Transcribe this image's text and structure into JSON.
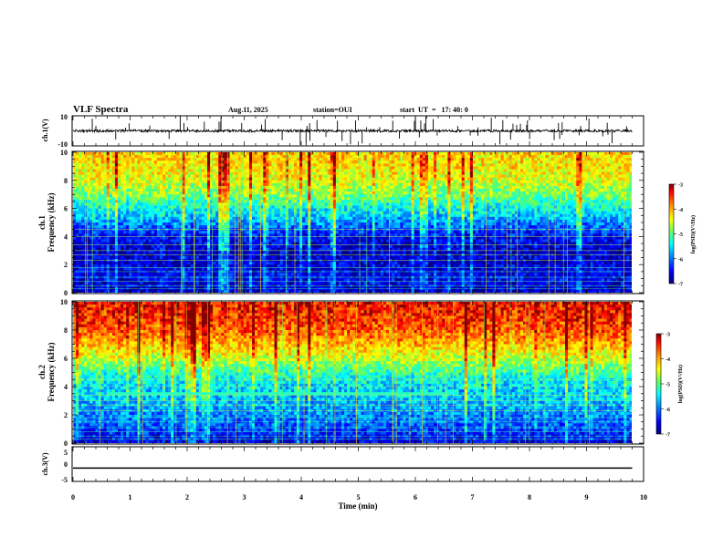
{
  "header": {
    "title": "VLF Spectra",
    "date": "Aug.11, 2025",
    "station": "station=OUI",
    "start": "start  UT  =   17: 40: 0"
  },
  "chart_data": [
    {
      "type": "line",
      "panel": "waveform-ch1",
      "ylabel": "ch.1(V)",
      "ylim": [
        -10,
        10
      ],
      "yticks": [
        "10",
        "-10"
      ],
      "xlim": [
        0,
        10
      ],
      "trace_level": 0,
      "trace_end_min": 9.8
    },
    {
      "type": "heatmap",
      "panel": "spectrogram-ch1",
      "ylabel_line1": "ch.1",
      "ylabel_line2": "Frequency (kHz)",
      "ylim": [
        0,
        10
      ],
      "yticks": [
        "0",
        "2",
        "4",
        "6",
        "8",
        "10"
      ],
      "xlim": [
        0,
        10
      ],
      "data_end_min": 9.8,
      "colorbar": {
        "min": -7,
        "max": -3,
        "ticks": [
          "-3",
          "-4",
          "-5",
          "-6",
          "-7"
        ],
        "label": "log(PSD)(V²/Hz)"
      },
      "intensity_profile_by_freq_kHz": [
        [
          0,
          -6.8
        ],
        [
          1,
          -6.6
        ],
        [
          2,
          -6.7
        ],
        [
          3,
          -6.8
        ],
        [
          4,
          -6.6
        ],
        [
          5,
          -6.0
        ],
        [
          6,
          -5.5
        ],
        [
          7,
          -5.0
        ],
        [
          8,
          -4.6
        ],
        [
          9,
          -4.4
        ],
        [
          10,
          -4.3
        ]
      ]
    },
    {
      "type": "heatmap",
      "panel": "spectrogram-ch2",
      "ylabel_line1": "ch.2",
      "ylabel_line2": "Frequency (kHz)",
      "ylim": [
        0,
        10
      ],
      "yticks": [
        "0",
        "2",
        "4",
        "6",
        "8",
        "10"
      ],
      "xlim": [
        0,
        10
      ],
      "data_end_min": 9.8,
      "colorbar": {
        "min": -7,
        "max": -3,
        "ticks": [
          "-3",
          "-4",
          "-5",
          "-6",
          "-7"
        ],
        "label": "log(PSD)(V²/Hz)"
      },
      "intensity_profile_by_freq_kHz": [
        [
          0,
          -6.7
        ],
        [
          1,
          -6.3
        ],
        [
          2,
          -6.0
        ],
        [
          3,
          -5.8
        ],
        [
          4,
          -5.7
        ],
        [
          5,
          -5.3
        ],
        [
          6,
          -4.7
        ],
        [
          7,
          -4.2
        ],
        [
          8,
          -3.8
        ],
        [
          9,
          -3.6
        ],
        [
          10,
          -3.5
        ]
      ],
      "band_kHz": 3.5,
      "band_span_min": [
        0.6,
        6.6
      ]
    },
    {
      "type": "line",
      "panel": "waveform-ch3",
      "ylabel": "ch.3(V)",
      "ylim": [
        -5,
        5
      ],
      "yticks": [
        "5",
        "0",
        "-5"
      ],
      "xlim": [
        0,
        10
      ],
      "trace_level": -1.2,
      "trace_end_min": 9.8
    }
  ],
  "xaxis": {
    "label": "Time (min)",
    "ticks": [
      "0",
      "1",
      "2",
      "3",
      "4",
      "5",
      "6",
      "7",
      "8",
      "9",
      "10"
    ]
  },
  "colors": {
    "frame": "#000000",
    "colormap": [
      "#000080",
      "#0000ff",
      "#00a0ff",
      "#00ffff",
      "#80ff60",
      "#ffff00",
      "#ff8000",
      "#ff0000",
      "#800000"
    ]
  }
}
